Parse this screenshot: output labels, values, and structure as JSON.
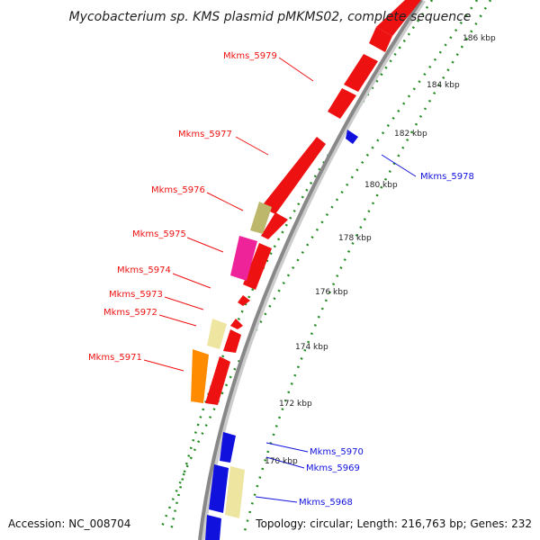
{
  "title": "Mycobacterium sp. KMS plasmid pMKMS02, complete sequence",
  "footer": {
    "accession": "Accession: NC_008704",
    "summary": "Topology: circular; Length: 216,763 bp; Genes: 232"
  },
  "colors": {
    "forward_cds": "#ee1111",
    "reverse_cds": "#1111dd",
    "pseudo": "#eee5a0",
    "tick": "#228b22",
    "backbone": "#888888",
    "khaki": "#bdb76b",
    "magenta": "#ee2299",
    "orange": "#ff8c00"
  },
  "kbp_ticks": [
    "186 kbp",
    "184 kbp",
    "182 kbp",
    "180 kbp",
    "178 kbp",
    "176 kbp",
    "174 kbp",
    "172 kbp",
    "170 kbp"
  ],
  "gene_labels": {
    "forward": [
      "Mkms_5979",
      "Mkms_5977",
      "Mkms_5976",
      "Mkms_5975",
      "Mkms_5974",
      "Mkms_5973",
      "Mkms_5972",
      "Mkms_5971"
    ],
    "reverse": [
      "Mkms_5978",
      "Mkms_5970",
      "Mkms_5969",
      "Mkms_5968"
    ]
  }
}
